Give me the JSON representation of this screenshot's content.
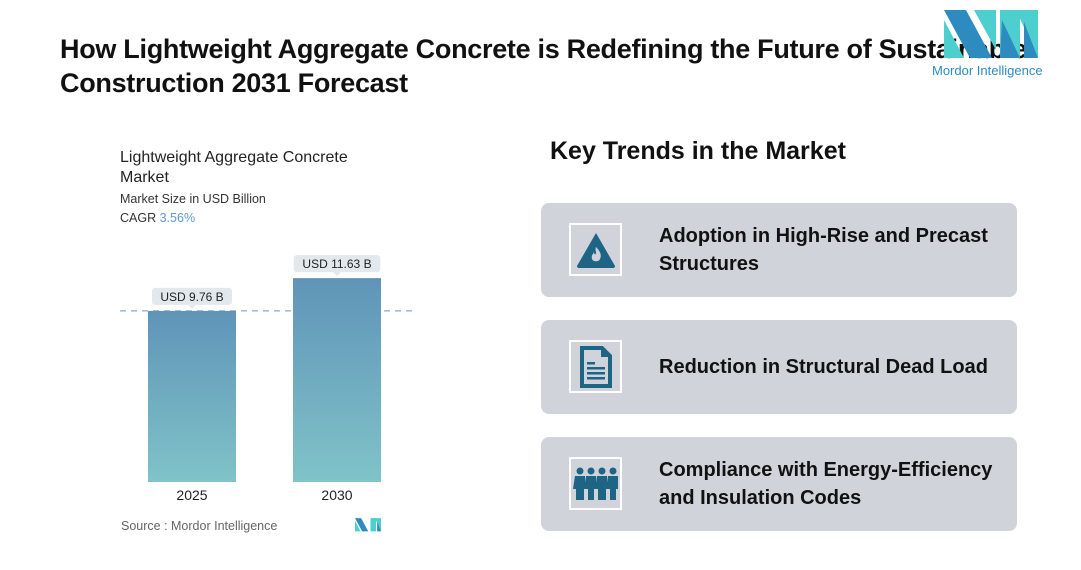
{
  "title": "How Lightweight Aggregate Concrete is Redefining the Future of Sustainable Construction 2031 Forecast",
  "logo": {
    "text": "Mordor Intelligence",
    "colors": [
      "#2e8bc0",
      "#4dcfcf"
    ]
  },
  "chart_data": {
    "type": "bar",
    "title": "Lightweight Aggregate Concrete Market",
    "subtitle": "Market Size in USD Billion",
    "cagr_label": "CAGR",
    "cagr_value": "3.56%",
    "categories": [
      "2025",
      "2030"
    ],
    "values": [
      9.76,
      11.63
    ],
    "data_labels": [
      "USD 9.76 B",
      "USD 11.63 B"
    ],
    "grid": false,
    "bar_gradient": [
      "#5f94b8",
      "#80c3c8"
    ]
  },
  "source": "Source :  Mordor Intelligence",
  "trends": {
    "heading": "Key Trends in the Market",
    "items": [
      {
        "label": "Adoption in High-Rise and Precast Structures",
        "icon": "fire-warning-icon"
      },
      {
        "label": "Reduction in Structural Dead Load",
        "icon": "document-icon"
      },
      {
        "label": "Compliance with Energy-Efficiency and Insulation Codes",
        "icon": "people-group-icon"
      }
    ]
  }
}
